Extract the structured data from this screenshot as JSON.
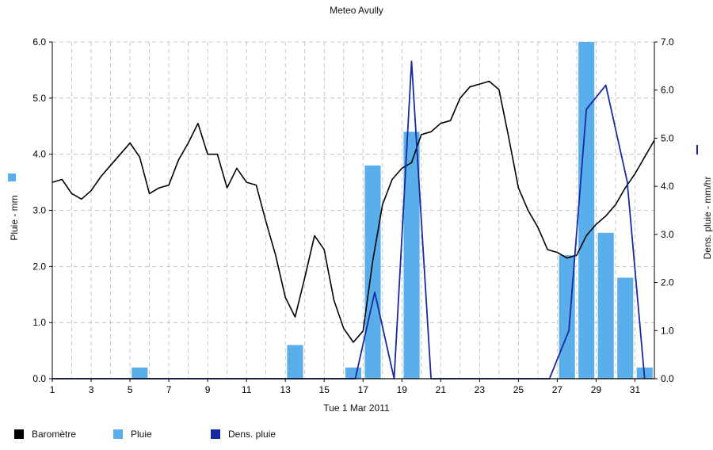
{
  "chart_data": {
    "type": "bar",
    "title": "Meteo  Avully",
    "xlabel": "Tue 1 Mar 2011",
    "ylabel_left": "Pluie - mm",
    "ylabel_right": "Dens. pluie - mm/hr",
    "x_ticks": [
      1,
      3,
      5,
      7,
      9,
      11,
      13,
      15,
      17,
      19,
      21,
      23,
      25,
      27,
      29,
      31
    ],
    "xlim": [
      1,
      32
    ],
    "ylim_left": [
      0,
      6
    ],
    "ylim_right": [
      0,
      7
    ],
    "y_ticks_left": [
      "0.0",
      "1.0",
      "2.0",
      "3.0",
      "4.0",
      "5.0",
      "6.0"
    ],
    "y_ticks_right": [
      "0.0",
      "1.0",
      "2.0",
      "3.0",
      "4.0",
      "5.0",
      "6.0",
      "7.0"
    ],
    "grid": true,
    "legend_placement": "bottom",
    "series": [
      {
        "name": "Baromètre",
        "kind": "line",
        "axis": "left",
        "color": "#000000",
        "x": [
          1,
          1.5,
          2,
          2.5,
          3,
          3.5,
          4,
          4.5,
          5,
          5.5,
          6,
          6.5,
          7,
          7.5,
          8,
          8.5,
          9,
          9.5,
          10,
          10.5,
          11,
          11.5,
          12,
          12.5,
          13,
          13.5,
          14,
          14.5,
          15,
          15.5,
          16,
          16.5,
          17,
          17.5,
          18,
          18.5,
          19,
          19.5,
          20,
          20.5,
          21,
          21.5,
          22,
          22.5,
          23,
          23.5,
          24,
          24.5,
          25,
          25.5,
          26,
          26.5,
          27,
          27.5,
          28,
          28.5,
          29,
          29.5,
          30,
          30.5,
          31,
          31.5,
          32
        ],
        "values": [
          3.5,
          3.55,
          3.3,
          3.2,
          3.35,
          3.6,
          3.8,
          4.0,
          4.2,
          3.95,
          3.3,
          3.4,
          3.45,
          3.9,
          4.2,
          4.55,
          4.0,
          4.0,
          3.4,
          3.75,
          3.5,
          3.45,
          2.8,
          2.2,
          1.45,
          1.1,
          1.8,
          2.55,
          2.3,
          1.4,
          0.9,
          0.65,
          0.85,
          2.1,
          3.1,
          3.55,
          3.75,
          3.85,
          4.35,
          4.4,
          4.55,
          4.6,
          5.0,
          5.2,
          5.25,
          5.3,
          5.15,
          4.3,
          3.4,
          3.0,
          2.7,
          2.3,
          2.25,
          2.15,
          2.2,
          2.55,
          2.75,
          2.9,
          3.1,
          3.4,
          3.65,
          3.95,
          4.25
        ]
      },
      {
        "name": "Pluie",
        "kind": "bar",
        "axis": "left",
        "color": "#5aaeea",
        "x": [
          5.5,
          13.5,
          16.5,
          17.5,
          19.5,
          27.5,
          28.5,
          29.5,
          30.5,
          31.5
        ],
        "values": [
          0.2,
          0.6,
          0.2,
          3.8,
          4.4,
          2.2,
          6.0,
          2.6,
          1.8,
          0.2
        ]
      },
      {
        "name": "Dens. pluie",
        "kind": "line",
        "axis": "right",
        "color": "#1a2a9e",
        "x": [
          1,
          16.6,
          17.6,
          18.6,
          19.5,
          20.5,
          26.6,
          27.6,
          28.5,
          29.5,
          30.6,
          31.5
        ],
        "values": [
          0.0,
          0.0,
          1.8,
          0.0,
          6.6,
          0.0,
          0.0,
          1.0,
          5.6,
          6.1,
          4.1,
          0.0
        ]
      }
    ]
  },
  "legend": [
    {
      "label": "Baromètre",
      "color": "#000000"
    },
    {
      "label": "Pluie",
      "color": "#5aaeea"
    },
    {
      "label": "Dens. pluie",
      "color": "#1a2a9e"
    }
  ]
}
